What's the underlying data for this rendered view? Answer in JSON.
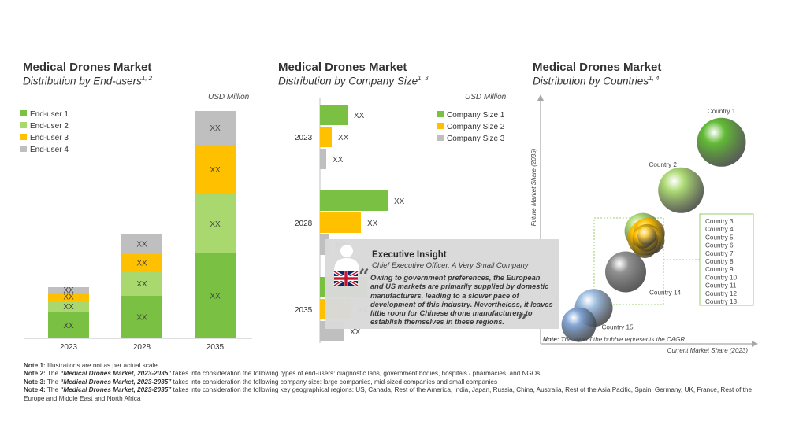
{
  "panels": [
    {
      "title": "Medical Drones Market",
      "subtitle": "Distribution by End-users",
      "sup": "1, 2",
      "unit": "USD Million"
    },
    {
      "title": "Medical Drones Market",
      "subtitle": "Distribution by Company Size",
      "sup": "1, 3",
      "unit": "USD Million"
    },
    {
      "title": "Medical Drones Market",
      "subtitle": "Distribution by Countries",
      "sup": "1, 4",
      "unit": ""
    }
  ],
  "colors": {
    "green": "#7ac143",
    "light_green": "#a9d86e",
    "yellow": "#ffc000",
    "grey": "#bfbfbf",
    "rule": "#bfbfbf"
  },
  "chart_data": [
    {
      "type": "bar",
      "stacked": true,
      "title": "Medical Drones Market",
      "categories": [
        "2023",
        "2028",
        "2035"
      ],
      "legend_position": "top-left",
      "series": [
        {
          "name": "End-user 1",
          "values": [
            33,
            54,
            108
          ],
          "color": "#7ac143",
          "label": "XX"
        },
        {
          "name": "End-user 2",
          "values": [
            15,
            31,
            75
          ],
          "color": "#a9d86e",
          "label": "XX"
        },
        {
          "name": "End-user 3",
          "values": [
            10,
            22,
            63
          ],
          "color": "#ffc000",
          "label": "XX"
        },
        {
          "name": "End-user 4",
          "values": [
            7,
            26,
            43
          ],
          "color": "#bfbfbf",
          "label": "XX"
        }
      ],
      "ylim": [
        0,
        300
      ]
    },
    {
      "type": "bar",
      "orientation": "horizontal",
      "title": "Medical Drones Market",
      "categories": [
        "2023",
        "2028",
        "2035"
      ],
      "legend_position": "top-right",
      "series": [
        {
          "name": "Company Size 1",
          "values": [
            35,
            86,
            60
          ],
          "color": "#7ac143",
          "label": "XX"
        },
        {
          "name": "Company Size 2",
          "values": [
            15,
            52,
            40
          ],
          "color": "#ffc000",
          "label": "XX"
        },
        {
          "name": "Company Size 3",
          "values": [
            8,
            12,
            30
          ],
          "color": "#bfbfbf",
          "label": "XX"
        }
      ],
      "xlim": [
        0,
        200
      ]
    },
    {
      "type": "scatter",
      "variant": "bubble",
      "title": "Medical Drones Market",
      "xlabel": "Current Market Share (2023)",
      "ylabel": "Future Market Share (2035)",
      "note_label": "Note:",
      "note_text": "The size of the bubble represents the CAGR",
      "points": [
        {
          "label": "Country 1",
          "x": 85,
          "y": 84,
          "size": 31,
          "color": "#5cb82e"
        },
        {
          "label": "Country 2",
          "x": 66,
          "y": 64,
          "size": 29,
          "color": "#a9d86e"
        },
        {
          "label": "Country 3",
          "x": 50,
          "y": 45,
          "size": 22,
          "color": "#ffc000"
        },
        {
          "label": "Country 4",
          "x": 49,
          "y": 44,
          "size": 22,
          "color": "#ffc000"
        },
        {
          "label": "Country 5",
          "x": 51,
          "y": 46,
          "size": 20,
          "color": "#ffc000"
        },
        {
          "label": "Country 6",
          "x": 50,
          "y": 44,
          "size": 18,
          "color": "#d4a800"
        },
        {
          "label": "Country 7",
          "x": 48,
          "y": 47,
          "size": 23,
          "color": "#a9d86e"
        },
        {
          "label": "Country 8",
          "x": 52,
          "y": 43,
          "size": 17,
          "color": "#ffc000"
        },
        {
          "label": "Country 9",
          "x": 49,
          "y": 41,
          "size": 16,
          "color": "#c99d00"
        },
        {
          "label": "Country 10",
          "x": 51,
          "y": 42,
          "size": 15,
          "color": "#ffc000"
        },
        {
          "label": "Country 11",
          "x": 50,
          "y": 43,
          "size": 14,
          "color": "#e0b000"
        },
        {
          "label": "Country 12",
          "x": 48,
          "y": 44,
          "size": 13,
          "color": "#ffc000"
        },
        {
          "label": "Country 13",
          "x": 50,
          "y": 45,
          "size": 12,
          "color": "#ffd24d"
        },
        {
          "label": "Country 14",
          "x": 40,
          "y": 30,
          "size": 26,
          "color": "#8c8c8c"
        },
        {
          "label": "Country 15",
          "x": 25,
          "y": 15,
          "size": 24,
          "color": "#9bbbe0"
        },
        {
          "label": "",
          "x": 18,
          "y": 8,
          "size": 22,
          "color": "#7fa3d4"
        }
      ],
      "grouped_labels": [
        "Country 3",
        "Country 4",
        "Country 5",
        "Country 6",
        "Country 7",
        "Country 8",
        "Country 9",
        "Country 10",
        "Country 11",
        "Country 12",
        "Country 13"
      ]
    }
  ],
  "insight": {
    "title": "Executive Insight",
    "role": "Chief Executive Officer, A Very Small Company",
    "quote": "Owing to government preferences, the European and US markets are primarily supplied by domestic manufacturers, leading to a slower pace of development of this industry. Nevertheless, it leaves little room for Chinese drone manufacturers to establish themselves in these regions.",
    "open_quote": "“",
    "close_quote": "”"
  },
  "notes": [
    {
      "label": "Note 1:",
      "pre": "",
      "emph": "",
      "text": "Illustrations are not as per actual scale"
    },
    {
      "label": "Note 2:",
      "pre": "The ",
      "emph": "“Medical Drones Market, 2023-2035”",
      "text": " takes into consideration the following types of end-users: diagnostic labs, government bodies, hospitals / pharmacies, and NGOs"
    },
    {
      "label": "Note 3:",
      "pre": "The ",
      "emph": "“Medical Drones Market, 2023-2035”",
      "text": " takes into consideration the following company size: large companies, mid-sized companies and small companies"
    },
    {
      "label": "Note 4:",
      "pre": "The ",
      "emph": "“Medical Drones Market, 2023-2035”",
      "text": " takes into consideration the following key geographical regions: US, Canada, Rest of the America, India, Japan, Russia, China, Australia, Rest of the Asia Pacific, Spain, Germany, UK, France, Rest of the Europe and Middle East and North Africa"
    }
  ]
}
